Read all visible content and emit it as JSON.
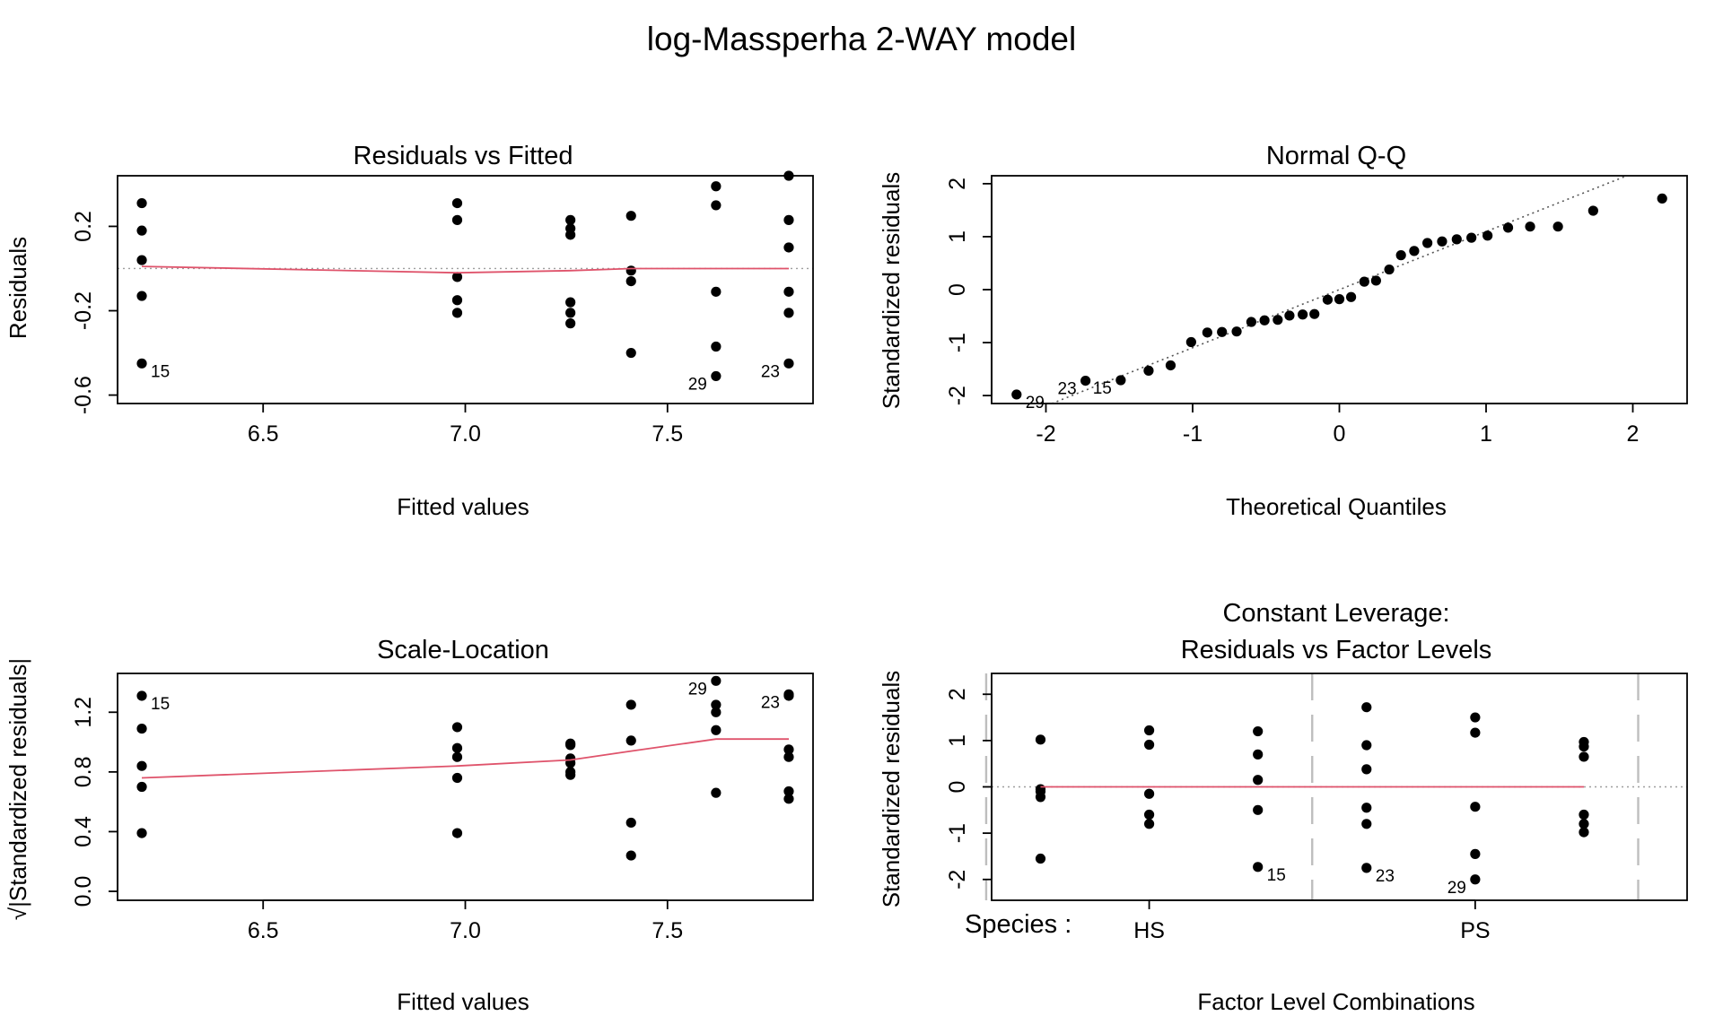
{
  "main_title": "log-Massperha 2-WAY model",
  "chart_data": [
    {
      "type": "scatter",
      "title": "Residuals vs Fitted",
      "xlabel": "Fitted values",
      "ylabel": "Residuals",
      "xlim": [
        6.14,
        7.86
      ],
      "ylim": [
        -0.64,
        0.44
      ],
      "xticks": [
        "6.5",
        "7.0",
        "7.5"
      ],
      "xtick_values": [
        6.5,
        7.0,
        7.5
      ],
      "yticks": [
        "-0.6",
        "-0.2",
        "0.2"
      ],
      "ytick_values": [
        -0.6,
        -0.2,
        0.2
      ],
      "ref_h": 0,
      "points": [
        [
          6.2,
          0.31
        ],
        [
          6.2,
          0.18
        ],
        [
          6.2,
          0.04
        ],
        [
          6.2,
          -0.13
        ],
        [
          6.2,
          -0.45
        ],
        [
          6.98,
          0.31
        ],
        [
          6.98,
          0.23
        ],
        [
          6.98,
          -0.04
        ],
        [
          6.98,
          -0.15
        ],
        [
          6.98,
          -0.21
        ],
        [
          7.26,
          0.23
        ],
        [
          7.26,
          0.19
        ],
        [
          7.26,
          0.16
        ],
        [
          7.26,
          -0.16
        ],
        [
          7.26,
          -0.21
        ],
        [
          7.26,
          -0.26
        ],
        [
          7.41,
          0.25
        ],
        [
          7.41,
          -0.01
        ],
        [
          7.41,
          -0.06
        ],
        [
          7.41,
          -0.4
        ],
        [
          7.62,
          0.39
        ],
        [
          7.62,
          0.3
        ],
        [
          7.62,
          -0.11
        ],
        [
          7.62,
          -0.37
        ],
        [
          7.62,
          -0.51
        ],
        [
          7.8,
          0.44
        ],
        [
          7.8,
          0.23
        ],
        [
          7.8,
          0.1
        ],
        [
          7.8,
          -0.11
        ],
        [
          7.8,
          -0.21
        ],
        [
          7.8,
          -0.45
        ]
      ],
      "smooth": [
        [
          6.2,
          0.01
        ],
        [
          6.98,
          -0.02
        ],
        [
          7.26,
          -0.01
        ],
        [
          7.41,
          0.0
        ],
        [
          7.62,
          0.0
        ],
        [
          7.8,
          0.0
        ]
      ],
      "labels": [
        {
          "text": "15",
          "x": 6.2,
          "y": -0.45,
          "side": "right"
        },
        {
          "text": "29",
          "x": 7.62,
          "y": -0.51,
          "side": "left"
        },
        {
          "text": "23",
          "x": 7.8,
          "y": -0.45,
          "side": "left"
        }
      ]
    },
    {
      "type": "scatter",
      "title": "Normal Q-Q",
      "xlabel": "Theoretical Quantiles",
      "ylabel": "Standardized residuals",
      "xlim": [
        -2.37,
        2.37
      ],
      "ylim": [
        -2.15,
        2.15
      ],
      "xticks": [
        "-2",
        "-1",
        "0",
        "1",
        "2"
      ],
      "xtick_values": [
        -2,
        -1,
        0,
        1,
        2
      ],
      "yticks": [
        "-2",
        "-1",
        "0",
        "1",
        "2"
      ],
      "ytick_values": [
        -2,
        -1,
        0,
        1,
        2
      ],
      "qq_line": [
        [
          -2.37,
          -2.6
        ],
        [
          2.37,
          2.6
        ]
      ],
      "points": [
        [
          -2.2,
          -1.98
        ],
        [
          -1.73,
          -1.72
        ],
        [
          -1.49,
          -1.71
        ],
        [
          -1.3,
          -1.53
        ],
        [
          -1.15,
          -1.43
        ],
        [
          -1.01,
          -0.99
        ],
        [
          -0.9,
          -0.81
        ],
        [
          -0.8,
          -0.8
        ],
        [
          -0.7,
          -0.79
        ],
        [
          -0.6,
          -0.61
        ],
        [
          -0.51,
          -0.58
        ],
        [
          -0.42,
          -0.57
        ],
        [
          -0.34,
          -0.49
        ],
        [
          -0.25,
          -0.47
        ],
        [
          -0.17,
          -0.46
        ],
        [
          -0.08,
          -0.19
        ],
        [
          0.0,
          -0.18
        ],
        [
          0.08,
          -0.14
        ],
        [
          0.17,
          0.15
        ],
        [
          0.25,
          0.17
        ],
        [
          0.34,
          0.38
        ],
        [
          0.42,
          0.65
        ],
        [
          0.51,
          0.73
        ],
        [
          0.6,
          0.88
        ],
        [
          0.7,
          0.91
        ],
        [
          0.8,
          0.95
        ],
        [
          0.9,
          0.98
        ],
        [
          1.01,
          1.02
        ],
        [
          1.15,
          1.17
        ],
        [
          1.3,
          1.19
        ],
        [
          1.49,
          1.19
        ],
        [
          1.73,
          1.49
        ],
        [
          2.2,
          1.72
        ]
      ],
      "labels": [
        {
          "text": "29",
          "x": -2.2,
          "y": -1.98,
          "side": "right"
        },
        {
          "text": "23",
          "x": -1.73,
          "y": -1.72,
          "side": "left"
        },
        {
          "text": "15",
          "x": -1.49,
          "y": -1.71,
          "side": "left"
        }
      ]
    },
    {
      "type": "scatter",
      "title": "Scale-Location",
      "xlabel": "Fitted values",
      "ylabel": "√|Standardized residuals|",
      "xlim": [
        6.14,
        7.86
      ],
      "ylim": [
        -0.06,
        1.46
      ],
      "xticks": [
        "6.5",
        "7.0",
        "7.5"
      ],
      "xtick_values": [
        6.5,
        7.0,
        7.5
      ],
      "yticks": [
        "0.0",
        "0.4",
        "0.8",
        "1.2"
      ],
      "ytick_values": [
        0.0,
        0.4,
        0.8,
        1.2
      ],
      "points": [
        [
          6.2,
          1.31
        ],
        [
          6.2,
          1.09
        ],
        [
          6.2,
          0.84
        ],
        [
          6.2,
          0.7
        ],
        [
          6.2,
          0.39
        ],
        [
          6.98,
          1.1
        ],
        [
          6.98,
          0.96
        ],
        [
          6.98,
          0.9
        ],
        [
          6.98,
          0.76
        ],
        [
          6.98,
          0.39
        ],
        [
          7.26,
          0.99
        ],
        [
          7.26,
          0.98
        ],
        [
          7.26,
          0.89
        ],
        [
          7.26,
          0.86
        ],
        [
          7.26,
          0.8
        ],
        [
          7.26,
          0.78
        ],
        [
          7.41,
          1.25
        ],
        [
          7.41,
          1.01
        ],
        [
          7.41,
          0.46
        ],
        [
          7.41,
          0.24
        ],
        [
          7.62,
          1.41
        ],
        [
          7.62,
          1.25
        ],
        [
          7.62,
          1.2
        ],
        [
          7.62,
          1.08
        ],
        [
          7.62,
          0.66
        ],
        [
          7.8,
          1.32
        ],
        [
          7.8,
          1.31
        ],
        [
          7.8,
          0.95
        ],
        [
          7.8,
          0.9
        ],
        [
          7.8,
          0.67
        ],
        [
          7.8,
          0.62
        ]
      ],
      "smooth": [
        [
          6.2,
          0.76
        ],
        [
          6.98,
          0.84
        ],
        [
          7.26,
          0.88
        ],
        [
          7.41,
          0.94
        ],
        [
          7.62,
          1.02
        ],
        [
          7.8,
          1.02
        ]
      ],
      "labels": [
        {
          "text": "15",
          "x": 6.2,
          "y": 1.31,
          "side": "right"
        },
        {
          "text": "29",
          "x": 7.62,
          "y": 1.41,
          "side": "left"
        },
        {
          "text": "23",
          "x": 7.8,
          "y": 1.32,
          "side": "left"
        }
      ]
    },
    {
      "type": "scatter",
      "title": "Constant Leverage:",
      "subtitle": "Residuals vs Factor Levels",
      "xlabel": "Factor Level Combinations",
      "ylabel": "Standardized residuals",
      "factor_label": "Species :",
      "xlim": [
        0.55,
        6.95
      ],
      "ylim": [
        -2.45,
        2.45
      ],
      "xticks": [
        "HS",
        "PS"
      ],
      "xtick_values": [
        2,
        5
      ],
      "yticks": [
        "-2",
        "-1",
        "0",
        "1",
        "2"
      ],
      "ytick_values": [
        -2,
        -1,
        0,
        1,
        2
      ],
      "separators": [
        0.5,
        3.5,
        6.5
      ],
      "ref_h": 0,
      "points": [
        [
          1,
          1.02
        ],
        [
          1,
          -0.05
        ],
        [
          1,
          -0.1
        ],
        [
          1,
          -0.22
        ],
        [
          1,
          -1.55
        ],
        [
          2,
          1.22
        ],
        [
          2,
          0.91
        ],
        [
          2,
          -0.15
        ],
        [
          2,
          -0.6
        ],
        [
          2,
          -0.8
        ],
        [
          3,
          1.2
        ],
        [
          3,
          0.7
        ],
        [
          3,
          0.15
        ],
        [
          3,
          -0.5
        ],
        [
          3,
          -1.73
        ],
        [
          4,
          1.72
        ],
        [
          4,
          0.9
        ],
        [
          4,
          0.38
        ],
        [
          4,
          -0.45
        ],
        [
          4,
          -0.8
        ],
        [
          4,
          -1.75
        ],
        [
          5,
          1.5
        ],
        [
          5,
          1.17
        ],
        [
          5,
          -0.43
        ],
        [
          5,
          -1.45
        ],
        [
          5,
          -2.0
        ],
        [
          6,
          0.97
        ],
        [
          6,
          0.87
        ],
        [
          6,
          0.65
        ],
        [
          6,
          -0.6
        ],
        [
          6,
          -0.8
        ],
        [
          6,
          -0.98
        ]
      ],
      "smooth": [
        [
          1,
          0.0
        ],
        [
          6,
          0.0
        ]
      ],
      "labels": [
        {
          "text": "15",
          "x": 3,
          "y": -1.73,
          "side": "right"
        },
        {
          "text": "23",
          "x": 4,
          "y": -1.75,
          "side": "right"
        },
        {
          "text": "29",
          "x": 5,
          "y": -2.0,
          "side": "left"
        }
      ]
    }
  ]
}
